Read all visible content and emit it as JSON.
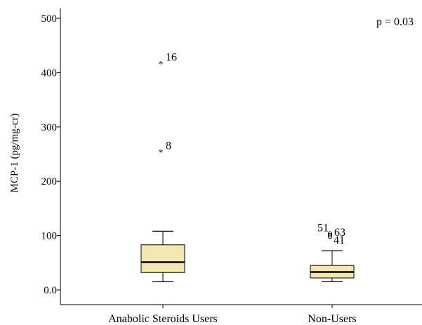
{
  "chart_data": {
    "type": "boxplot",
    "title": "",
    "xlabel": "",
    "ylabel": "MCP-1 (pg/mg-cr)",
    "ylim": [
      0,
      500
    ],
    "yticks": [
      0,
      100,
      200,
      300,
      400,
      500
    ],
    "ytick_labels": [
      "0.0",
      "100",
      "200",
      "300",
      "400",
      "500"
    ],
    "categories": [
      "Anabolic Steroids Users",
      "Non-Users"
    ],
    "annotation": "p = 0.03",
    "box_color": "#f3e7b1",
    "grid": false,
    "boxes": [
      {
        "category": "Anabolic Steroids Users",
        "whisker_low": 15,
        "q1": 32,
        "median": 51,
        "q3": 83,
        "whisker_high": 108,
        "outliers": [
          {
            "value": 255,
            "label": "8",
            "marker": "star"
          },
          {
            "value": 418,
            "label": "16",
            "marker": "star"
          }
        ]
      },
      {
        "category": "Non-Users",
        "whisker_low": 15,
        "q1": 22,
        "median": 33,
        "q3": 45,
        "whisker_high": 72,
        "outliers": [
          {
            "value": 98,
            "label": "41",
            "marker": "circle"
          },
          {
            "value": 101,
            "label": "63",
            "marker": "circle"
          },
          {
            "value": 104,
            "label": "51",
            "marker": "circle"
          }
        ]
      }
    ]
  }
}
